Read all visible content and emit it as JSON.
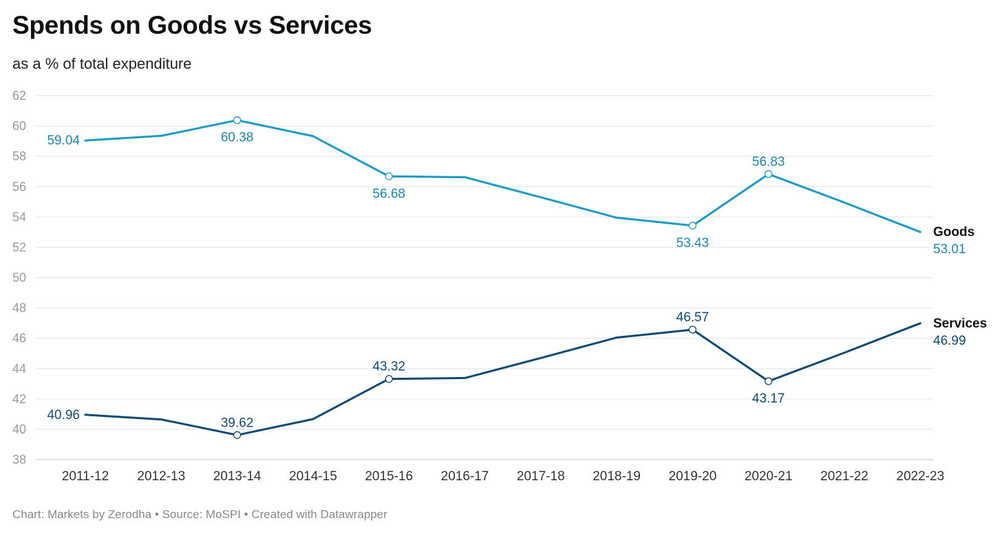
{
  "chart_data": {
    "type": "line",
    "title": "Spends on Goods vs Services",
    "subtitle": "as a % of total expenditure",
    "footer": "Chart: Markets by Zerodha • Source: MoSPI • Created with Datawrapper",
    "ylim": [
      38,
      62
    ],
    "yticks": [
      38,
      40,
      42,
      44,
      46,
      48,
      50,
      52,
      54,
      56,
      58,
      60,
      62
    ],
    "categories": [
      "2011-12",
      "2012-13",
      "2013-14",
      "2014-15",
      "2015-16",
      "2016-17",
      "2017-18",
      "2018-19",
      "2019-20",
      "2020-21",
      "2021-22",
      "2022-23"
    ],
    "grid": true,
    "series": [
      {
        "name": "Goods",
        "color": "#1b9ac6",
        "label_color": "#1a87ad",
        "values": [
          59.04,
          59.35,
          60.38,
          59.33,
          56.68,
          56.62,
          55.3,
          53.95,
          53.43,
          56.83,
          54.95,
          53.01
        ],
        "annotations": [
          {
            "index": 0,
            "text": "59.04",
            "pos": "left",
            "marker": false
          },
          {
            "index": 2,
            "text": "60.38",
            "pos": "below",
            "marker": true
          },
          {
            "index": 4,
            "text": "56.68",
            "pos": "below",
            "marker": true
          },
          {
            "index": 8,
            "text": "53.43",
            "pos": "below",
            "marker": true
          },
          {
            "index": 9,
            "text": "56.83",
            "pos": "above",
            "marker": true
          },
          {
            "index": 11,
            "text": "53.01",
            "pos": "end",
            "marker": false
          }
        ]
      },
      {
        "name": "Services",
        "color": "#0d4a72",
        "label_color": "#0d4a72",
        "values": [
          40.96,
          40.65,
          39.62,
          40.67,
          43.32,
          43.38,
          44.7,
          46.05,
          46.57,
          43.17,
          45.05,
          46.99
        ],
        "annotations": [
          {
            "index": 0,
            "text": "40.96",
            "pos": "left",
            "marker": false
          },
          {
            "index": 2,
            "text": "39.62",
            "pos": "above",
            "marker": true
          },
          {
            "index": 4,
            "text": "43.32",
            "pos": "above",
            "marker": true
          },
          {
            "index": 8,
            "text": "46.57",
            "pos": "above",
            "marker": true
          },
          {
            "index": 9,
            "text": "43.17",
            "pos": "below",
            "marker": true
          },
          {
            "index": 11,
            "text": "46.99",
            "pos": "end",
            "marker": false
          }
        ]
      }
    ]
  }
}
